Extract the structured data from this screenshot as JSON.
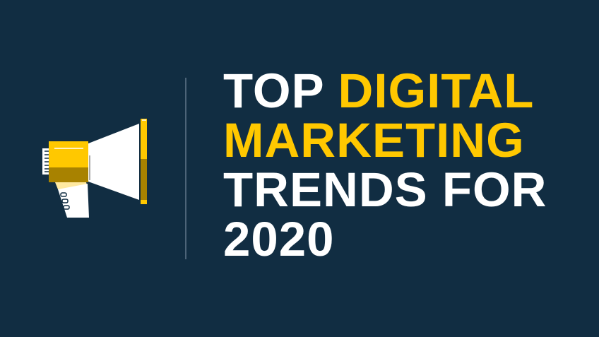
{
  "headline": {
    "line1_white": "TOP",
    "line1_accent": "DIGITAL",
    "line2_accent": "MARKETING",
    "line3": "TRENDS FOR",
    "line4": "2020"
  },
  "colors": {
    "background": "#112d42",
    "accent": "#ffc800",
    "accent_dark": "#a88200",
    "text": "#ffffff"
  },
  "icon": "megaphone-icon"
}
